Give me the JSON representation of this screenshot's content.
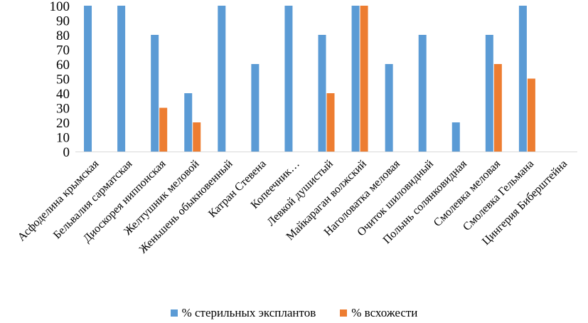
{
  "chart_data": {
    "type": "bar",
    "title": "",
    "xlabel": "",
    "ylabel": "",
    "ylim": [
      0,
      100
    ],
    "yticks": [
      0,
      10,
      20,
      30,
      40,
      50,
      60,
      70,
      80,
      90,
      100
    ],
    "categories": [
      "Асфоделина крымская",
      "Бельвалия сарматская",
      "Диоскорея ниппонская",
      "Желтушник меловой",
      "Женьшень обыкновенный",
      "Катран Стевена",
      "Копеечник…",
      "Левкой душистый",
      "Майкараган волжский",
      "Наголоватка меловая",
      "Очиток шиловидный",
      "Полынь солянковидная",
      "Смолевка меловая",
      "Смолевка Гельмана",
      "Цингерия Биберштейна"
    ],
    "series": [
      {
        "name": "% стерильных эксплантов",
        "color": "#5B9BD5",
        "values": [
          100,
          100,
          80,
          40,
          100,
          60,
          100,
          80,
          100,
          60,
          80,
          20,
          80,
          100,
          null
        ]
      },
      {
        "name": "% всхожести",
        "color": "#ED7D31",
        "values": [
          null,
          null,
          30,
          20,
          null,
          null,
          null,
          40,
          100,
          null,
          null,
          null,
          60,
          50,
          null
        ]
      }
    ],
    "legend_position": "bottom"
  }
}
